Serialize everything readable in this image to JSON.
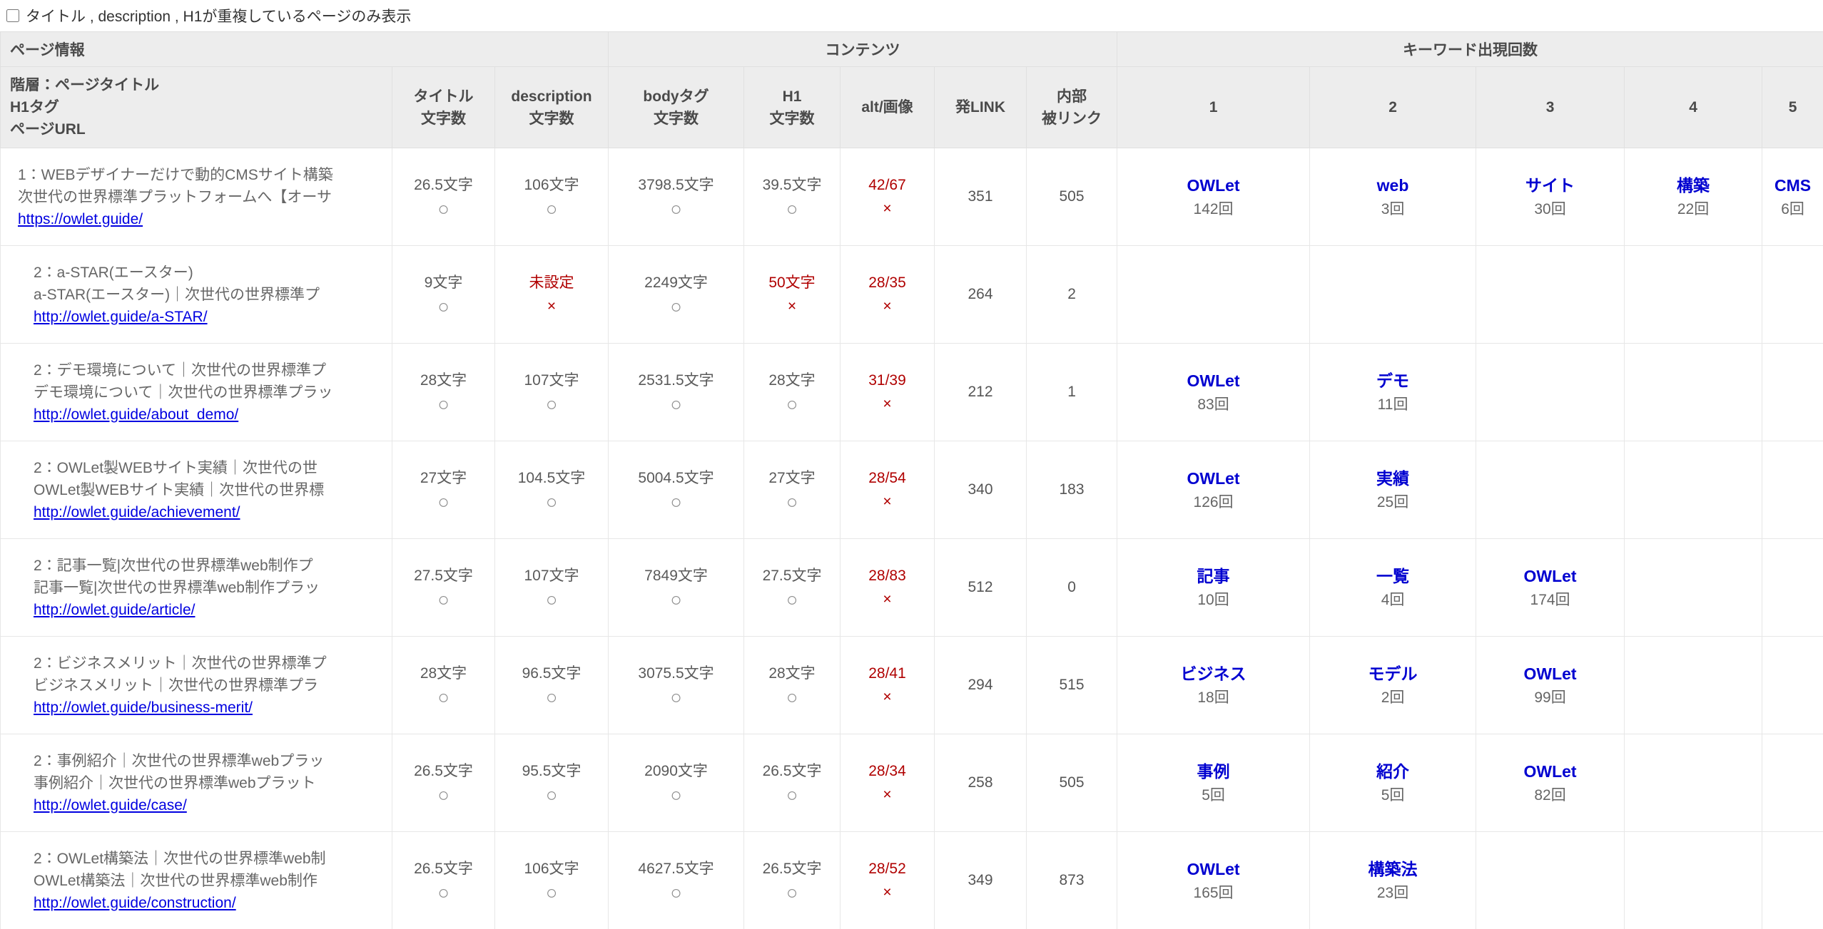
{
  "filter": {
    "label": "タイトル , description , H1が重複しているページのみ表示",
    "checked": false
  },
  "colors": {
    "link_blue": "#0000e0",
    "keyword_blue": "#0000d0",
    "status_ok_gray": "#8a8a8a",
    "status_ng_red": "#b00000",
    "header_bg": "#ededed",
    "body_text_gray": "#5a5a5a"
  },
  "status_symbols": {
    "ok": "○",
    "ng": "×"
  },
  "table": {
    "groups": [
      {
        "label": "ページ情報"
      },
      {
        "label": "コンテンツ"
      },
      {
        "label": "キーワード出現回数"
      }
    ],
    "columns": {
      "page": {
        "line1": "階層：ページタイトル",
        "line2": "H1タグ",
        "line3": "ページURL"
      },
      "title_chars": {
        "line1": "タイトル",
        "line2": "文字数"
      },
      "description_chars": {
        "line1": "description",
        "line2": "文字数"
      },
      "body_chars": {
        "line1": "bodyタグ",
        "line2": "文字数"
      },
      "h1_chars": {
        "line1": "H1",
        "line2": "文字数"
      },
      "alt_images": {
        "line1": "alt/画像"
      },
      "out_links": {
        "line1": "発LINK"
      },
      "in_links": {
        "line1": "内部",
        "line2": "被リンク"
      },
      "kw1": {
        "line1": "1"
      },
      "kw2": {
        "line1": "2"
      },
      "kw3": {
        "line1": "3"
      },
      "kw4": {
        "line1": "4"
      },
      "kw5": {
        "line1": "5"
      }
    }
  },
  "rows": [
    {
      "indent_level": 1,
      "title_line1": "1：WEBデザイナーだけで動的CMSサイト構築",
      "title_line2": "次世代の世界標準プラットフォームへ【オーサ",
      "url": "https://owlet.guide/",
      "stats": [
        {
          "value": "26.5文字",
          "status": "ok"
        },
        {
          "value": "106文字",
          "status": "ok"
        },
        {
          "value": "3798.5文字",
          "status": "ok"
        },
        {
          "value": "39.5文字",
          "status": "ok"
        },
        {
          "value": "42/67",
          "status": "ng"
        }
      ],
      "out_links": "351",
      "in_links": "505",
      "keywords": [
        {
          "word": "OWLet",
          "count": "142回"
        },
        {
          "word": "web",
          "count": "3回"
        },
        {
          "word": "サイト",
          "count": "30回"
        },
        {
          "word": "構築",
          "count": "22回"
        },
        {
          "word": "CMS",
          "count": "6回"
        }
      ]
    },
    {
      "indent_level": 2,
      "title_line1": "2：a-STAR(エースター)",
      "title_line2": "a-STAR(エースター)｜次世代の世界標準プ",
      "url": "http://owlet.guide/a-STAR/",
      "stats": [
        {
          "value": "9文字",
          "status": "ok"
        },
        {
          "value": "未設定",
          "status": "ng"
        },
        {
          "value": "2249文字",
          "status": "ok"
        },
        {
          "value": "50文字",
          "status": "ng"
        },
        {
          "value": "28/35",
          "status": "ng"
        }
      ],
      "out_links": "264",
      "in_links": "2",
      "keywords": []
    },
    {
      "indent_level": 2,
      "title_line1": "2：デモ環境について｜次世代の世界標準プ",
      "title_line2": "デモ環境について｜次世代の世界標準プラッ",
      "url": "http://owlet.guide/about_demo/",
      "stats": [
        {
          "value": "28文字",
          "status": "ok"
        },
        {
          "value": "107文字",
          "status": "ok"
        },
        {
          "value": "2531.5文字",
          "status": "ok"
        },
        {
          "value": "28文字",
          "status": "ok"
        },
        {
          "value": "31/39",
          "status": "ng"
        }
      ],
      "out_links": "212",
      "in_links": "1",
      "keywords": [
        {
          "word": "OWLet",
          "count": "83回"
        },
        {
          "word": "デモ",
          "count": "11回"
        }
      ]
    },
    {
      "indent_level": 2,
      "title_line1": "2：OWLet製WEBサイト実績｜次世代の世",
      "title_line2": "OWLet製WEBサイト実績｜次世代の世界標",
      "url": "http://owlet.guide/achievement/",
      "stats": [
        {
          "value": "27文字",
          "status": "ok"
        },
        {
          "value": "104.5文字",
          "status": "ok"
        },
        {
          "value": "5004.5文字",
          "status": "ok"
        },
        {
          "value": "27文字",
          "status": "ok"
        },
        {
          "value": "28/54",
          "status": "ng"
        }
      ],
      "out_links": "340",
      "in_links": "183",
      "keywords": [
        {
          "word": "OWLet",
          "count": "126回"
        },
        {
          "word": "実績",
          "count": "25回"
        }
      ]
    },
    {
      "indent_level": 2,
      "title_line1": "2：記事一覧|次世代の世界標準web制作プ",
      "title_line2": "記事一覧|次世代の世界標準web制作プラッ",
      "url": "http://owlet.guide/article/",
      "stats": [
        {
          "value": "27.5文字",
          "status": "ok"
        },
        {
          "value": "107文字",
          "status": "ok"
        },
        {
          "value": "7849文字",
          "status": "ok"
        },
        {
          "value": "27.5文字",
          "status": "ok"
        },
        {
          "value": "28/83",
          "status": "ng"
        }
      ],
      "out_links": "512",
      "in_links": "0",
      "keywords": [
        {
          "word": "記事",
          "count": "10回"
        },
        {
          "word": "一覧",
          "count": "4回"
        },
        {
          "word": "OWLet",
          "count": "174回"
        }
      ]
    },
    {
      "indent_level": 2,
      "title_line1": "2：ビジネスメリット｜次世代の世界標準プ",
      "title_line2": "ビジネスメリット｜次世代の世界標準プラ",
      "url": "http://owlet.guide/business-merit/",
      "stats": [
        {
          "value": "28文字",
          "status": "ok"
        },
        {
          "value": "96.5文字",
          "status": "ok"
        },
        {
          "value": "3075.5文字",
          "status": "ok"
        },
        {
          "value": "28文字",
          "status": "ok"
        },
        {
          "value": "28/41",
          "status": "ng"
        }
      ],
      "out_links": "294",
      "in_links": "515",
      "keywords": [
        {
          "word": "ビジネス",
          "count": "18回"
        },
        {
          "word": "モデル",
          "count": "2回"
        },
        {
          "word": "OWLet",
          "count": "99回"
        }
      ]
    },
    {
      "indent_level": 2,
      "title_line1": "2：事例紹介｜次世代の世界標準webプラッ",
      "title_line2": "事例紹介｜次世代の世界標準webプラット",
      "url": "http://owlet.guide/case/",
      "stats": [
        {
          "value": "26.5文字",
          "status": "ok"
        },
        {
          "value": "95.5文字",
          "status": "ok"
        },
        {
          "value": "2090文字",
          "status": "ok"
        },
        {
          "value": "26.5文字",
          "status": "ok"
        },
        {
          "value": "28/34",
          "status": "ng"
        }
      ],
      "out_links": "258",
      "in_links": "505",
      "keywords": [
        {
          "word": "事例",
          "count": "5回"
        },
        {
          "word": "紹介",
          "count": "5回"
        },
        {
          "word": "OWLet",
          "count": "82回"
        }
      ]
    },
    {
      "indent_level": 2,
      "title_line1": "2：OWLet構築法｜次世代の世界標準web制",
      "title_line2": "OWLet構築法｜次世代の世界標準web制作",
      "url": "http://owlet.guide/construction/",
      "stats": [
        {
          "value": "26.5文字",
          "status": "ok"
        },
        {
          "value": "106文字",
          "status": "ok"
        },
        {
          "value": "4627.5文字",
          "status": "ok"
        },
        {
          "value": "26.5文字",
          "status": "ok"
        },
        {
          "value": "28/52",
          "status": "ng"
        }
      ],
      "out_links": "349",
      "in_links": "873",
      "keywords": [
        {
          "word": "OWLet",
          "count": "165回"
        },
        {
          "word": "構築法",
          "count": "23回"
        }
      ]
    }
  ]
}
